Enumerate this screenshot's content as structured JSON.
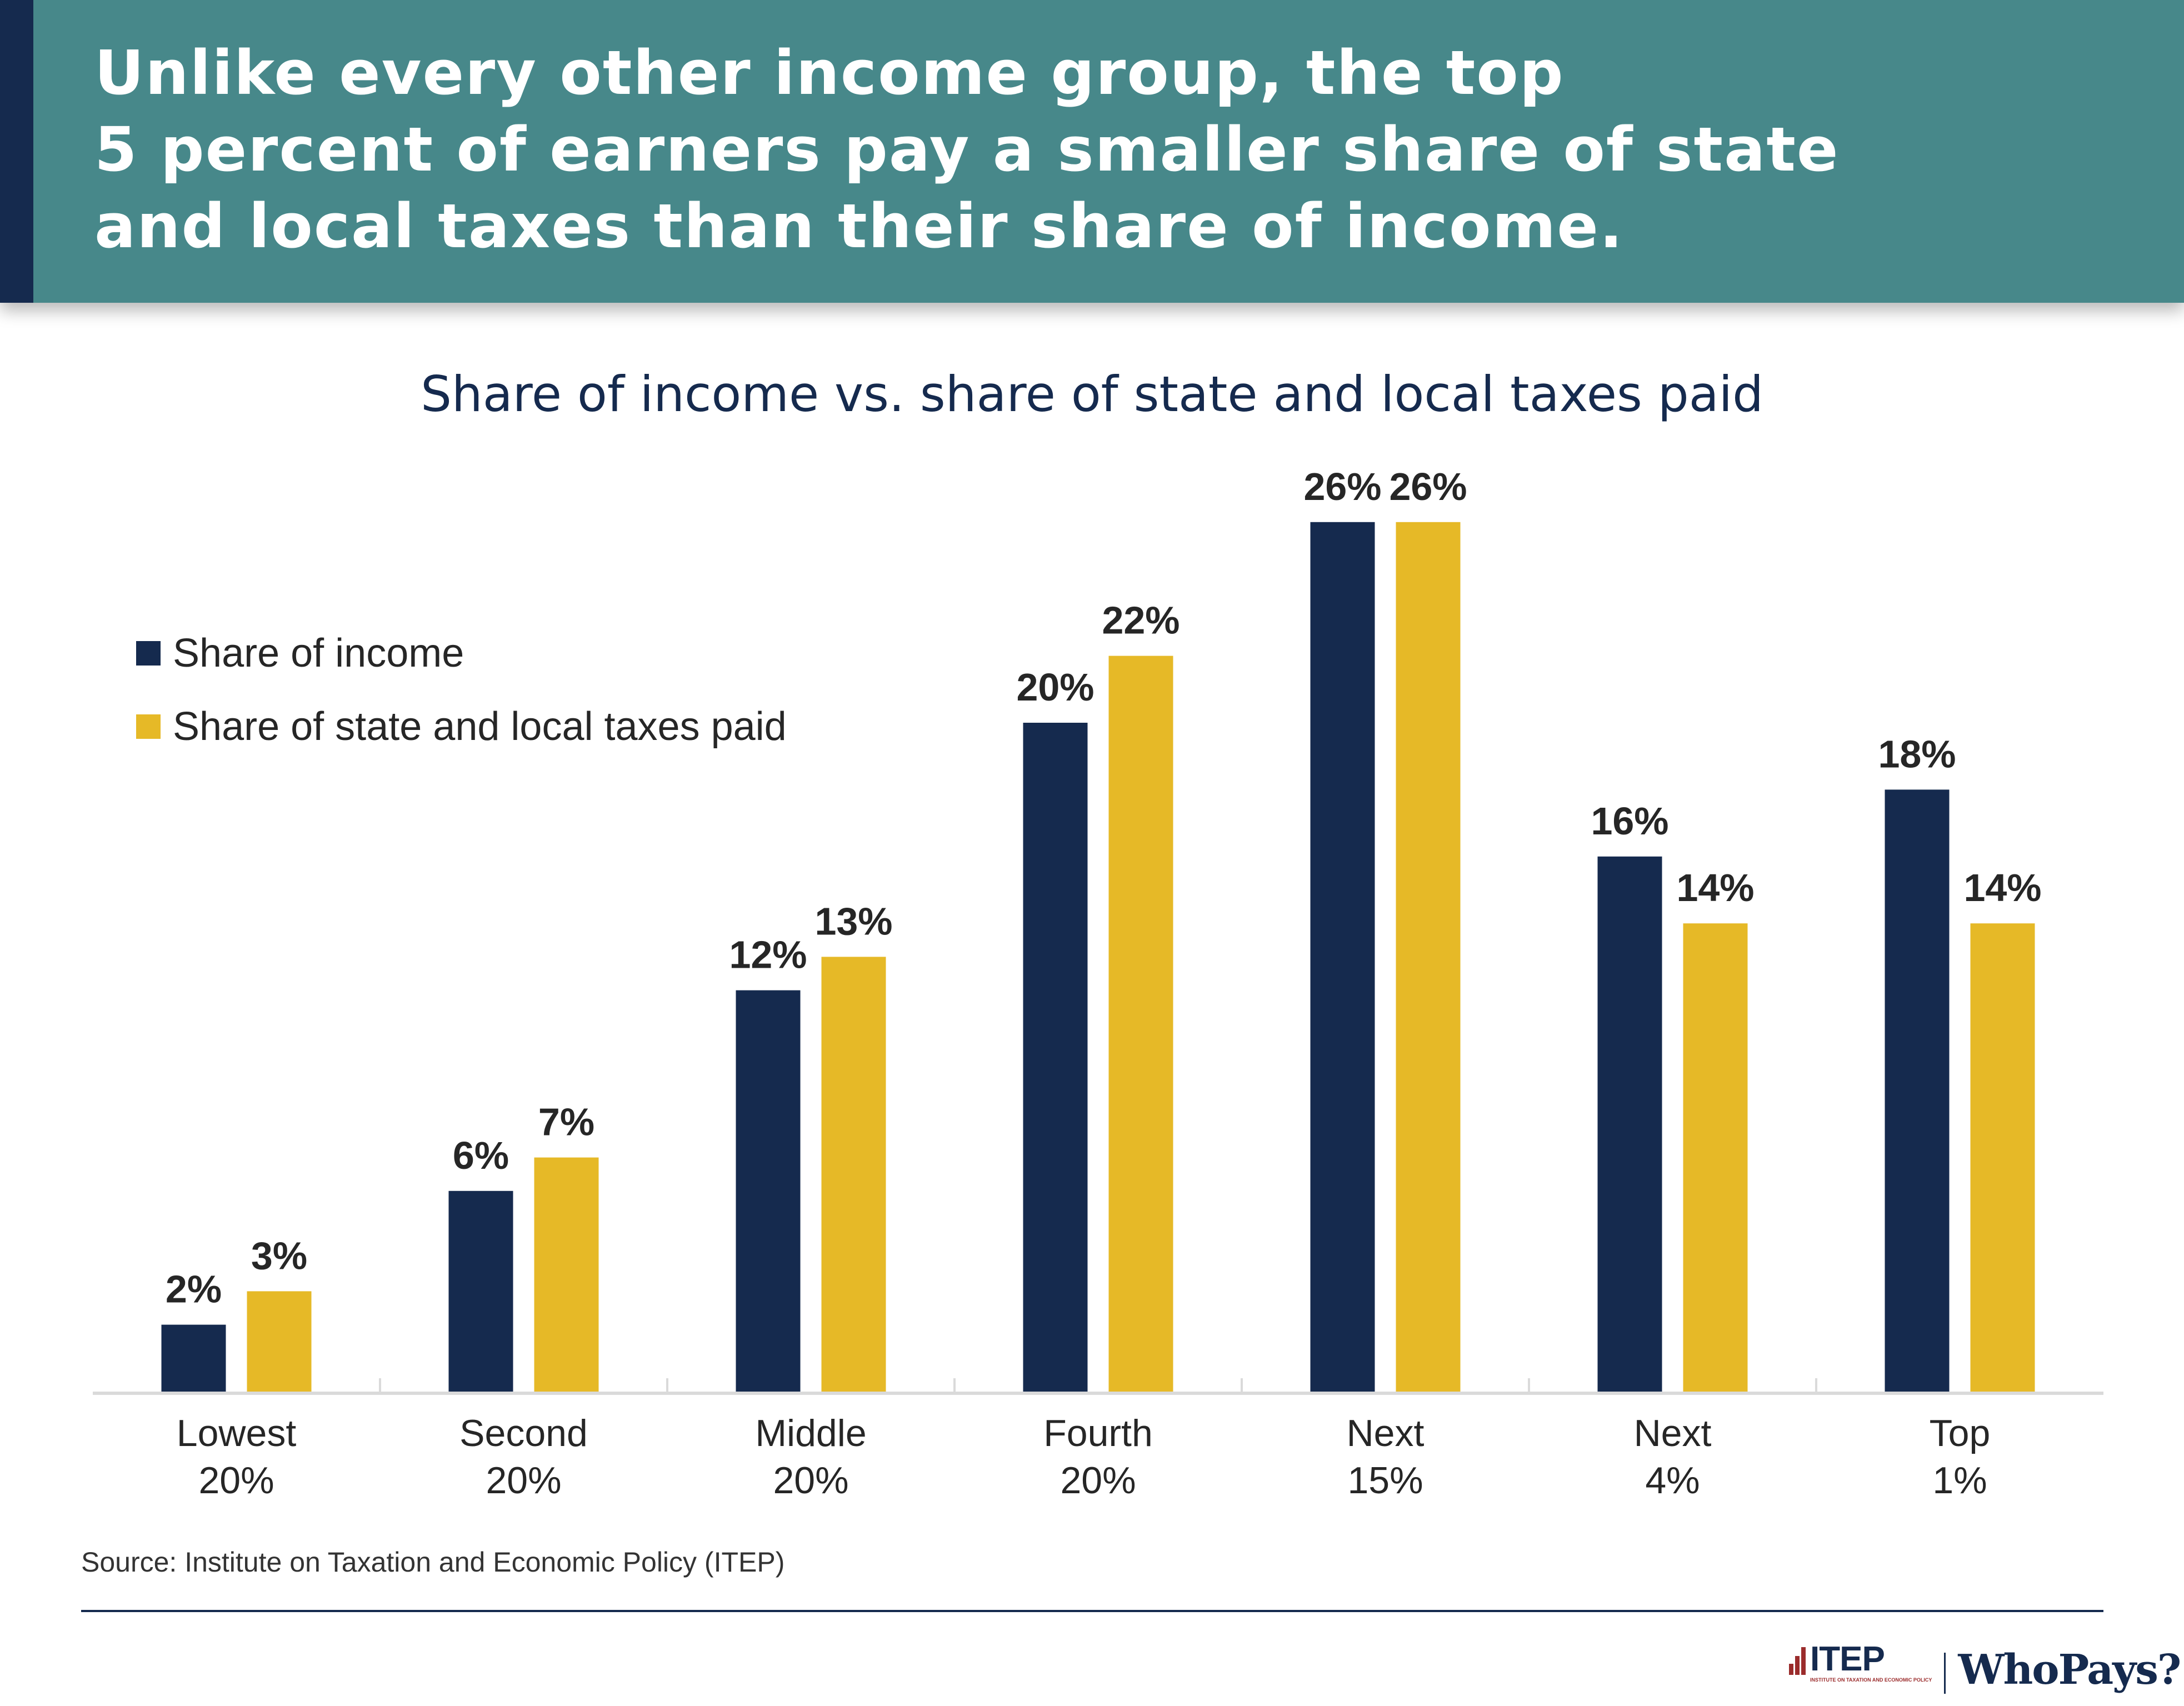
{
  "header": {
    "headline_lines": [
      "Unlike every other income group, the top",
      "5 percent of earners pay a smaller share of state",
      "and local taxes than their share of income."
    ]
  },
  "colors": {
    "header_bg": "#47888A",
    "header_stripe": "#152A4E",
    "income": "#152A4E",
    "taxes": "#E6B927",
    "baseline": "#DADADA",
    "label_text": "#262626"
  },
  "chart_data": {
    "type": "bar",
    "title": "Share of income vs. share of state and local taxes paid",
    "xlabel": "",
    "ylabel": "",
    "ylim": [
      0,
      26
    ],
    "grid": false,
    "legend_position": "top-left",
    "categories": [
      [
        "Lowest",
        "20%"
      ],
      [
        "Second",
        "20%"
      ],
      [
        "Middle",
        "20%"
      ],
      [
        "Fourth",
        "20%"
      ],
      [
        "Next",
        "15%"
      ],
      [
        "Next",
        "4%"
      ],
      [
        "Top",
        "1%"
      ]
    ],
    "series": [
      {
        "name": "Share of income",
        "color": "#152A4E",
        "values": [
          2,
          6,
          12,
          20,
          26,
          16,
          18
        ],
        "labels": [
          "2%",
          "6%",
          "12%",
          "20%",
          "26%",
          "16%",
          "18%"
        ]
      },
      {
        "name": "Share of state and local taxes paid",
        "color": "#E6B927",
        "values": [
          3,
          7,
          13,
          22,
          26,
          14,
          14
        ],
        "labels": [
          "3%",
          "7%",
          "13%",
          "22%",
          "26%",
          "14%",
          "14%"
        ]
      }
    ]
  },
  "legend": {
    "items": [
      {
        "label": "Share of income",
        "color": "#152A4E"
      },
      {
        "label": "Share of state and local taxes paid",
        "color": "#E6B927"
      }
    ]
  },
  "footer": {
    "source": "Source: Institute on Taxation and Economic Policy (ITEP)",
    "logo_itep": "ITEP",
    "logo_itep_sub": "INSTITUTE ON TAXATION AND ECONOMIC POLICY",
    "logo_whopays": "WhoPays?"
  }
}
